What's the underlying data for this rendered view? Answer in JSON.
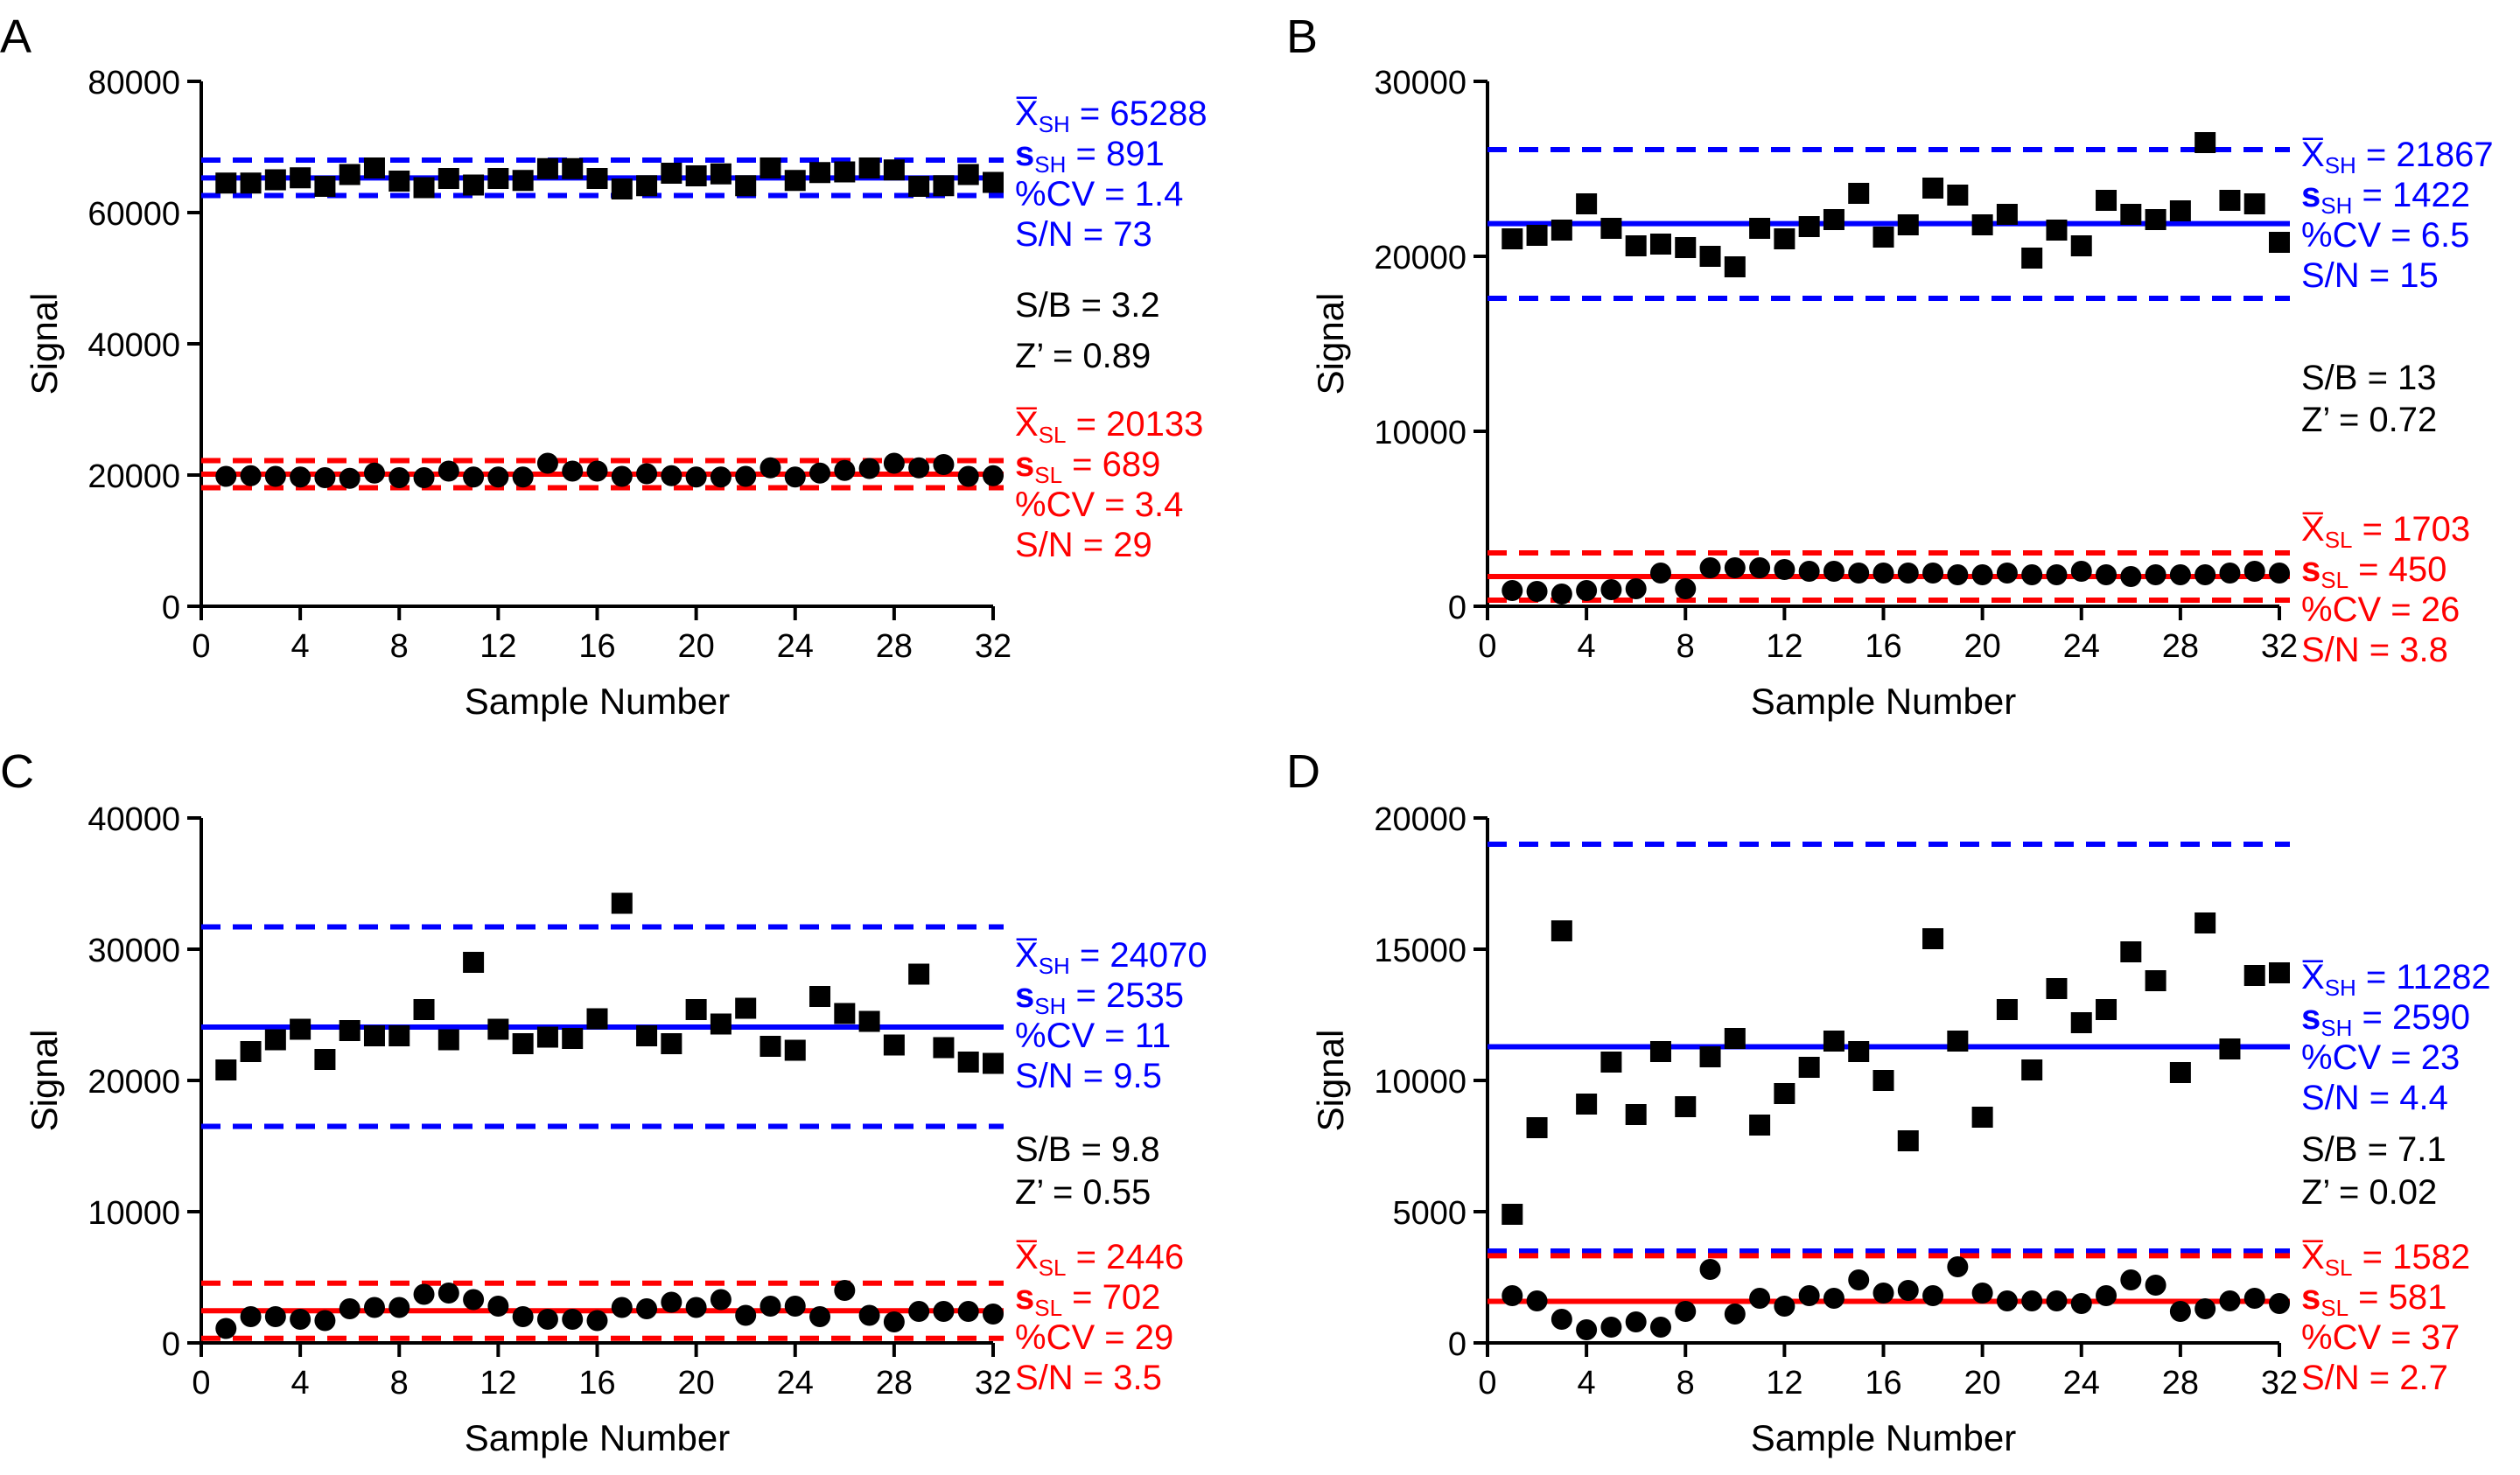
{
  "colors": {
    "high": "#0000ff",
    "low": "#ff0000",
    "ink": "#000000"
  },
  "chart_data": [
    {
      "panel": "A",
      "type": "scatter",
      "xlabel": "Sample Number",
      "ylabel": "Signal",
      "xlim": [
        0,
        32
      ],
      "ylim": [
        0,
        80000
      ],
      "xticks": [
        0,
        4,
        8,
        12,
        16,
        20,
        24,
        28,
        32
      ],
      "yticks": [
        0,
        20000,
        40000,
        60000,
        80000
      ],
      "xtick_labels": [
        "0",
        "4",
        "8",
        "12",
        "16",
        "20",
        "24",
        "28",
        "32"
      ],
      "ytick_labels": [
        "0",
        "20000",
        "40000",
        "60000",
        "80000"
      ],
      "high": {
        "marker": "square",
        "x": [
          1,
          2,
          3,
          4,
          5,
          6,
          7,
          8,
          9,
          10,
          11,
          12,
          13,
          14,
          15,
          16,
          17,
          18,
          19,
          20,
          21,
          22,
          23,
          24,
          25,
          26,
          27,
          28,
          29,
          30,
          31,
          32
        ],
        "y": [
          64500,
          64500,
          65000,
          65300,
          64000,
          65800,
          66800,
          64800,
          63800,
          65200,
          64200,
          65200,
          64900,
          66700,
          66700,
          65200,
          63600,
          64100,
          66000,
          65600,
          65900,
          64100,
          66800,
          64900,
          66100,
          66200,
          66800,
          66500,
          64000,
          64100,
          65800,
          64600
        ],
        "mean": 65288,
        "band": [
          62600,
          68000
        ]
      },
      "low": {
        "marker": "circle",
        "x": [
          1,
          2,
          3,
          4,
          5,
          6,
          7,
          8,
          9,
          10,
          11,
          12,
          13,
          14,
          15,
          16,
          17,
          18,
          19,
          20,
          21,
          22,
          23,
          24,
          25,
          26,
          27,
          28,
          29,
          30,
          31,
          32
        ],
        "y": [
          19800,
          19900,
          19800,
          19700,
          19600,
          19500,
          20300,
          19600,
          19600,
          20600,
          19700,
          19700,
          19700,
          21800,
          20600,
          20600,
          19800,
          20200,
          19900,
          19700,
          19700,
          19800,
          21100,
          19700,
          20300,
          20700,
          21000,
          21800,
          21100,
          21600,
          19800,
          19900
        ],
        "mean": 20133,
        "band": [
          18070,
          22200
        ]
      },
      "annotations": {
        "high": [
          "X̅SH = 65288",
          "sSH = 891",
          "%CV = 1.4",
          "S/N = 73"
        ],
        "mid": [
          "S/B = 3.2",
          "Z’ = 0.89"
        ],
        "low": [
          "X̅SL = 20133",
          "sSL = 689",
          "%CV = 3.4",
          "S/N = 29"
        ]
      }
    },
    {
      "panel": "B",
      "type": "scatter",
      "xlabel": "Sample Number",
      "ylabel": "Signal",
      "xlim": [
        0,
        32
      ],
      "ylim": [
        0,
        30000
      ],
      "xticks": [
        0,
        4,
        8,
        12,
        16,
        20,
        24,
        28,
        32
      ],
      "yticks": [
        0,
        10000,
        20000,
        30000
      ],
      "xtick_labels": [
        "0",
        "4",
        "8",
        "12",
        "16",
        "20",
        "24",
        "28",
        "32"
      ],
      "ytick_labels": [
        "0",
        "10000",
        "20000",
        "30000"
      ],
      "high": {
        "marker": "square",
        "x": [
          1,
          2,
          3,
          4,
          5,
          6,
          7,
          8,
          9,
          10,
          11,
          12,
          13,
          14,
          15,
          16,
          17,
          18,
          19,
          20,
          21,
          22,
          23,
          24,
          25,
          26,
          27,
          28,
          29,
          30,
          31,
          32
        ],
        "y": [
          21000,
          21200,
          21500,
          23000,
          21600,
          20600,
          20700,
          20500,
          20000,
          19400,
          21600,
          21000,
          21700,
          22100,
          23600,
          21100,
          21800,
          23900,
          23500,
          21800,
          22400,
          19900,
          21500,
          20600,
          23200,
          22400,
          22100,
          22600,
          26500,
          23200,
          23000,
          20800
        ],
        "mean": 21867,
        "band": [
          17600,
          26100
        ]
      },
      "low": {
        "marker": "circle",
        "x": [
          1,
          2,
          3,
          4,
          5,
          6,
          7,
          8,
          9,
          10,
          11,
          12,
          13,
          14,
          15,
          16,
          17,
          18,
          19,
          20,
          21,
          22,
          23,
          24,
          25,
          26,
          27,
          28,
          29,
          30,
          31,
          32
        ],
        "y": [
          900,
          850,
          700,
          900,
          950,
          1000,
          1900,
          1000,
          2200,
          2200,
          2200,
          2100,
          2000,
          2000,
          1900,
          1900,
          1900,
          1900,
          1800,
          1800,
          1900,
          1800,
          1800,
          2000,
          1800,
          1700,
          1800,
          1800,
          1800,
          1900,
          2000,
          1900
        ],
        "mean": 1703,
        "band": [
          350,
          3050
        ]
      },
      "annotations": {
        "high": [
          "X̅SH = 21867",
          "sSH = 1422",
          "%CV = 6.5",
          "S/N = 15"
        ],
        "mid": [
          "S/B = 13",
          "Z’ = 0.72"
        ],
        "low": [
          "X̅SL = 1703",
          "sSL = 450",
          "%CV = 26",
          "S/N = 3.8"
        ]
      }
    },
    {
      "panel": "C",
      "type": "scatter",
      "xlabel": "Sample Number",
      "ylabel": "Signal",
      "xlim": [
        0,
        32
      ],
      "ylim": [
        0,
        40000
      ],
      "xticks": [
        0,
        4,
        8,
        12,
        16,
        20,
        24,
        28,
        32
      ],
      "yticks": [
        0,
        10000,
        20000,
        30000,
        40000
      ],
      "xtick_labels": [
        "0",
        "4",
        "8",
        "12",
        "16",
        "20",
        "24",
        "28",
        "32"
      ],
      "ytick_labels": [
        "0",
        "10000",
        "20000",
        "30000",
        "40000"
      ],
      "high": {
        "marker": "square",
        "x": [
          1,
          2,
          3,
          4,
          5,
          6,
          7,
          8,
          9,
          10,
          11,
          12,
          13,
          14,
          15,
          16,
          17,
          18,
          19,
          20,
          21,
          22,
          23,
          24,
          25,
          26,
          27,
          28,
          29,
          30,
          31,
          32
        ],
        "y": [
          20800,
          22200,
          23100,
          23900,
          21600,
          23800,
          23400,
          23400,
          25400,
          23100,
          29000,
          23900,
          22800,
          23300,
          23200,
          24700,
          33500,
          23400,
          22800,
          25400,
          24300,
          25500,
          22600,
          22300,
          26400,
          25100,
          24500,
          22700,
          28100,
          22500,
          21400,
          21300
        ],
        "mean": 24070,
        "band": [
          16500,
          31700
        ]
      },
      "low": {
        "marker": "circle",
        "x": [
          1,
          2,
          3,
          4,
          5,
          6,
          7,
          8,
          9,
          10,
          11,
          12,
          13,
          14,
          15,
          16,
          17,
          18,
          19,
          20,
          21,
          22,
          23,
          24,
          25,
          26,
          27,
          28,
          29,
          30,
          31,
          32
        ],
        "y": [
          1100,
          2000,
          2000,
          1800,
          1700,
          2600,
          2700,
          2700,
          3700,
          3800,
          3300,
          2800,
          2000,
          1800,
          1800,
          1700,
          2700,
          2600,
          3100,
          2700,
          3300,
          2100,
          2800,
          2800,
          2000,
          4000,
          2100,
          1600,
          2400,
          2400,
          2400,
          2200
        ],
        "mean": 2446,
        "band": [
          350,
          4550
        ]
      },
      "annotations": {
        "high": [
          "X̅SH = 24070",
          "sSH = 2535",
          "%CV = 11",
          "S/N = 9.5"
        ],
        "mid": [
          "S/B = 9.8",
          "Z’ = 0.55"
        ],
        "low": [
          "X̅SL = 2446",
          "sSL = 702",
          "%CV = 29",
          "S/N = 3.5"
        ]
      }
    },
    {
      "panel": "D",
      "type": "scatter",
      "xlabel": "Sample Number",
      "ylabel": "Signal",
      "xlim": [
        0,
        32
      ],
      "ylim": [
        0,
        20000
      ],
      "xticks": [
        0,
        4,
        8,
        12,
        16,
        20,
        24,
        28,
        32
      ],
      "yticks": [
        0,
        5000,
        10000,
        15000,
        20000
      ],
      "xtick_labels": [
        "0",
        "4",
        "8",
        "12",
        "16",
        "20",
        "24",
        "28",
        "32"
      ],
      "ytick_labels": [
        "0",
        "5000",
        "10000",
        "15000",
        "20000"
      ],
      "high": {
        "marker": "square",
        "x": [
          1,
          2,
          3,
          4,
          5,
          6,
          7,
          8,
          9,
          10,
          11,
          12,
          13,
          14,
          15,
          16,
          17,
          18,
          19,
          20,
          21,
          22,
          23,
          24,
          25,
          26,
          27,
          28,
          29,
          30,
          31,
          32
        ],
        "y": [
          4900,
          8200,
          15700,
          9100,
          10700,
          8700,
          11100,
          9000,
          10900,
          11600,
          8300,
          9500,
          10500,
          11500,
          11100,
          10000,
          7700,
          15400,
          11500,
          8600,
          12700,
          10400,
          13500,
          12200,
          12700,
          14900,
          13800,
          10300,
          16000,
          11200,
          14000,
          14100
        ],
        "mean": 11282,
        "band": [
          3500,
          19000
        ]
      },
      "low": {
        "marker": "circle",
        "x": [
          1,
          2,
          3,
          4,
          5,
          6,
          7,
          8,
          9,
          10,
          11,
          12,
          13,
          14,
          15,
          16,
          17,
          18,
          19,
          20,
          21,
          22,
          23,
          24,
          25,
          26,
          27,
          28,
          29,
          30,
          31,
          32
        ],
        "y": [
          1800,
          1600,
          900,
          500,
          600,
          800,
          600,
          1200,
          2800,
          1100,
          1700,
          1400,
          1800,
          1700,
          2400,
          1900,
          2000,
          1800,
          2900,
          1900,
          1600,
          1600,
          1600,
          1500,
          1800,
          2400,
          2200,
          1200,
          1300,
          1600,
          1700,
          1500
        ],
        "mean": 1582,
        "band": [
          3320
        ]
      },
      "annotations": {
        "high": [
          "X̅SH = 11282",
          "sSH = 2590",
          "%CV = 23",
          "S/N = 4.4"
        ],
        "mid": [
          "S/B = 7.1",
          "Z’ = 0.02"
        ],
        "low": [
          "X̅SL = 1582",
          "sSL = 581",
          "%CV = 37",
          "S/N = 2.7"
        ]
      }
    }
  ]
}
